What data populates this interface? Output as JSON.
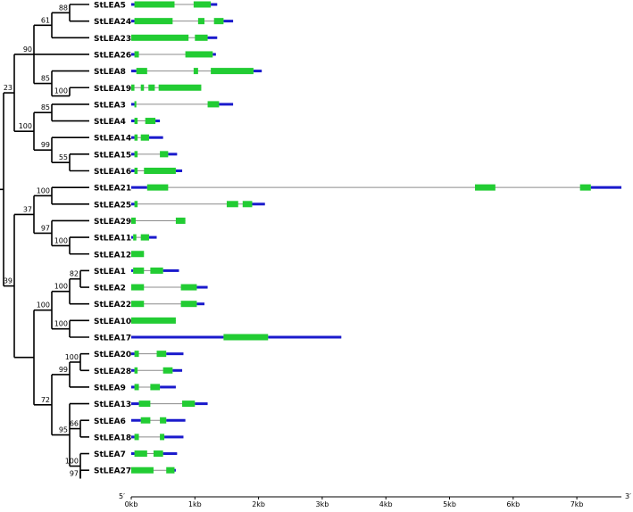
{
  "colors": {
    "cds": "#22cc33",
    "utr": "#1a1acc",
    "intron": "#8c8c8c",
    "tree": "#000000"
  },
  "scale": {
    "unit": "kb",
    "kb_per_tick": 1,
    "max_kb": 7.7,
    "ticks": [
      "0kb",
      "1kb",
      "2kb",
      "3kb",
      "4kb",
      "5kb",
      "6kb",
      "7kb"
    ],
    "end_left": "5′",
    "end_right": "3′"
  },
  "genes": [
    {
      "name": "StLEA5",
      "length": 1.35,
      "exons": [
        [
          0.05,
          0.68
        ],
        [
          0.98,
          1.25
        ]
      ],
      "utrs": [
        [
          0,
          0.05
        ],
        [
          1.25,
          1.35
        ]
      ]
    },
    {
      "name": "StLEA24",
      "length": 1.6,
      "exons": [
        [
          0.05,
          0.65
        ],
        [
          1.05,
          1.15
        ],
        [
          1.3,
          1.45
        ]
      ],
      "utrs": [
        [
          0,
          0.05
        ],
        [
          1.45,
          1.6
        ]
      ]
    },
    {
      "name": "StLEA23",
      "length": 1.35,
      "exons": [
        [
          0,
          0.9
        ],
        [
          1.0,
          1.2
        ]
      ],
      "utrs": [
        [
          1.2,
          1.35
        ]
      ]
    },
    {
      "name": "StLEA26",
      "length": 1.33,
      "exons": [
        [
          0.05,
          0.12
        ],
        [
          0.85,
          1.28
        ]
      ],
      "utrs": [
        [
          0,
          0.05
        ],
        [
          1.28,
          1.33
        ]
      ]
    },
    {
      "name": "StLEA8",
      "length": 2.05,
      "exons": [
        [
          0.08,
          0.25
        ],
        [
          0.98,
          1.05
        ],
        [
          1.25,
          1.92
        ]
      ],
      "utrs": [
        [
          0,
          0.08
        ],
        [
          1.92,
          2.05
        ]
      ]
    },
    {
      "name": "StLEA19",
      "length": 1.1,
      "exons": [
        [
          0,
          0.05
        ],
        [
          0.15,
          0.2
        ],
        [
          0.27,
          0.37
        ],
        [
          0.43,
          1.1
        ]
      ],
      "utrs": []
    },
    {
      "name": "StLEA3",
      "length": 1.6,
      "exons": [
        [
          0.05,
          0.08
        ],
        [
          1.2,
          1.38
        ]
      ],
      "utrs": [
        [
          0,
          0.05
        ],
        [
          1.38,
          1.6
        ]
      ]
    },
    {
      "name": "StLEA4",
      "length": 0.45,
      "exons": [
        [
          0.05,
          0.1
        ],
        [
          0.22,
          0.38
        ]
      ],
      "utrs": [
        [
          0,
          0.05
        ],
        [
          0.38,
          0.45
        ]
      ]
    },
    {
      "name": "StLEA14",
      "length": 0.5,
      "exons": [
        [
          0.05,
          0.1
        ],
        [
          0.15,
          0.28
        ]
      ],
      "utrs": [
        [
          0,
          0.05
        ],
        [
          0.28,
          0.5
        ]
      ]
    },
    {
      "name": "StLEA15",
      "length": 0.72,
      "exons": [
        [
          0.05,
          0.1
        ],
        [
          0.45,
          0.58
        ]
      ],
      "utrs": [
        [
          0,
          0.05
        ],
        [
          0.58,
          0.72
        ]
      ]
    },
    {
      "name": "StLEA16",
      "length": 0.8,
      "exons": [
        [
          0.05,
          0.1
        ],
        [
          0.2,
          0.7
        ]
      ],
      "utrs": [
        [
          0,
          0.05
        ],
        [
          0.7,
          0.8
        ]
      ]
    },
    {
      "name": "StLEA21",
      "length": 7.7,
      "exons": [
        [
          0.25,
          0.58
        ],
        [
          5.4,
          5.72
        ],
        [
          7.05,
          7.22
        ]
      ],
      "utrs": [
        [
          0,
          0.25
        ],
        [
          7.22,
          7.7
        ]
      ]
    },
    {
      "name": "StLEA25",
      "length": 2.1,
      "exons": [
        [
          0.05,
          0.1
        ],
        [
          1.5,
          1.68
        ],
        [
          1.75,
          1.9
        ]
      ],
      "utrs": [
        [
          0,
          0.05
        ],
        [
          1.9,
          2.1
        ]
      ]
    },
    {
      "name": "StLEA29",
      "length": 0.85,
      "exons": [
        [
          0,
          0.07
        ],
        [
          0.7,
          0.85
        ]
      ],
      "utrs": []
    },
    {
      "name": "StLEA11",
      "length": 0.4,
      "exons": [
        [
          0.03,
          0.08
        ],
        [
          0.15,
          0.28
        ]
      ],
      "utrs": [
        [
          0,
          0.03
        ],
        [
          0.28,
          0.4
        ]
      ]
    },
    {
      "name": "StLEA12",
      "length": 0.2,
      "exons": [
        [
          0,
          0.2
        ]
      ],
      "utrs": []
    },
    {
      "name": "StLEA1",
      "length": 0.75,
      "exons": [
        [
          0.03,
          0.2
        ],
        [
          0.3,
          0.5
        ]
      ],
      "utrs": [
        [
          0,
          0.03
        ],
        [
          0.5,
          0.75
        ]
      ]
    },
    {
      "name": "StLEA2",
      "length": 1.2,
      "exons": [
        [
          0,
          0.2
        ],
        [
          0.78,
          1.03
        ]
      ],
      "utrs": [
        [
          1.03,
          1.2
        ]
      ]
    },
    {
      "name": "StLEA22",
      "length": 1.15,
      "exons": [
        [
          0,
          0.2
        ],
        [
          0.78,
          1.03
        ]
      ],
      "utrs": [
        [
          1.03,
          1.15
        ]
      ]
    },
    {
      "name": "StLEA10",
      "length": 0.7,
      "exons": [
        [
          0,
          0.7
        ]
      ],
      "utrs": []
    },
    {
      "name": "StLEA17",
      "length": 3.3,
      "exons": [
        [
          1.45,
          2.15
        ]
      ],
      "utrs": [
        [
          0,
          1.45
        ],
        [
          2.15,
          3.3
        ]
      ]
    },
    {
      "name": "StLEA20",
      "length": 0.82,
      "exons": [
        [
          0.05,
          0.12
        ],
        [
          0.4,
          0.55
        ]
      ],
      "utrs": [
        [
          0,
          0.05
        ],
        [
          0.55,
          0.82
        ]
      ]
    },
    {
      "name": "StLEA28",
      "length": 0.8,
      "exons": [
        [
          0.05,
          0.1
        ],
        [
          0.5,
          0.65
        ]
      ],
      "utrs": [
        [
          0,
          0.05
        ],
        [
          0.65,
          0.8
        ]
      ]
    },
    {
      "name": "StLEA9",
      "length": 0.7,
      "exons": [
        [
          0.05,
          0.12
        ],
        [
          0.3,
          0.45
        ]
      ],
      "utrs": [
        [
          0,
          0.05
        ],
        [
          0.45,
          0.7
        ]
      ]
    },
    {
      "name": "StLEA13",
      "length": 1.2,
      "exons": [
        [
          0.12,
          0.3
        ],
        [
          0.8,
          1.0
        ]
      ],
      "utrs": [
        [
          0,
          0.12
        ],
        [
          1.0,
          1.2
        ]
      ]
    },
    {
      "name": "StLEA6",
      "length": 0.85,
      "exons": [
        [
          0.15,
          0.3
        ],
        [
          0.45,
          0.55
        ]
      ],
      "utrs": [
        [
          0,
          0.15
        ],
        [
          0.55,
          0.85
        ]
      ]
    },
    {
      "name": "StLEA18",
      "length": 0.82,
      "exons": [
        [
          0.05,
          0.12
        ],
        [
          0.45,
          0.52
        ]
      ],
      "utrs": [
        [
          0,
          0.05
        ],
        [
          0.52,
          0.82
        ]
      ]
    },
    {
      "name": "StLEA7",
      "length": 0.72,
      "exons": [
        [
          0.05,
          0.25
        ],
        [
          0.35,
          0.5
        ]
      ],
      "utrs": [
        [
          0,
          0.05
        ],
        [
          0.5,
          0.72
        ]
      ]
    },
    {
      "name": "StLEA27",
      "length": 0.7,
      "exons": [
        [
          0,
          0.35
        ],
        [
          0.55,
          0.68
        ]
      ],
      "utrs": [
        [
          0.68,
          0.7
        ]
      ]
    }
  ],
  "tree": {
    "children": [
      {
        "bootstrap": "23",
        "children": [
          {
            "bootstrap": "90",
            "children": [
              {
                "bootstrap": "61",
                "children": [
                  {
                    "bootstrap": "88",
                    "children": [
                      {
                        "leaf": "StLEA5"
                      },
                      {
                        "leaf": "StLEA24"
                      }
                    ]
                  },
                  {
                    "leaf": "StLEA23"
                  }
                ]
              },
              {
                "leaf": "StLEA26"
              },
              {
                "bootstrap": "85",
                "children": [
                  {
                    "leaf": "StLEA8"
                  },
                  {
                    "bootstrap": "100",
                    "children": [
                      {
                        "leaf": "StLEA19"
                      }
                    ]
                  }
                ]
              }
            ]
          },
          {
            "bootstrap": "100",
            "children": [
              {
                "bootstrap": "85",
                "children": [
                  {
                    "leaf": "StLEA3"
                  },
                  {
                    "leaf": "StLEA4"
                  }
                ]
              },
              {
                "bootstrap": "99",
                "children": [
                  {
                    "leaf": "StLEA14"
                  },
                  {
                    "bootstrap": "55",
                    "children": [
                      {
                        "leaf": "StLEA15"
                      },
                      {
                        "leaf": "StLEA16"
                      }
                    ]
                  }
                ]
              }
            ]
          }
        ]
      },
      {
        "bootstrap": "39",
        "children": [
          {
            "bootstrap": "37",
            "children": [
              {
                "bootstrap": "100",
                "children": [
                  {
                    "leaf": "StLEA21"
                  },
                  {
                    "leaf": "StLEA25"
                  }
                ]
              },
              {
                "bootstrap": "97",
                "children": [
                  {
                    "leaf": "StLEA29"
                  },
                  {
                    "bootstrap": "100",
                    "children": [
                      {
                        "leaf": "StLEA11"
                      },
                      {
                        "leaf": "StLEA12"
                      }
                    ]
                  }
                ]
              }
            ]
          },
          {
            "children": [
              {
                "bootstrap": "100",
                "children": [
                  {
                    "bootstrap": "100",
                    "children": [
                      {
                        "bootstrap": "82",
                        "children": [
                          {
                            "leaf": "StLEA1"
                          },
                          {
                            "leaf": "StLEA2"
                          }
                        ]
                      },
                      {
                        "leaf": "StLEA22"
                      }
                    ]
                  },
                  {
                    "bootstrap": "100",
                    "children": [
                      {
                        "leaf": "StLEA10"
                      },
                      {
                        "leaf": "StLEA17"
                      }
                    ]
                  }
                ]
              },
              {
                "bootstrap": "72",
                "children": [
                  {
                    "bootstrap": "99",
                    "children": [
                      {
                        "bootstrap": "100",
                        "children": [
                          {
                            "leaf": "StLEA20"
                          },
                          {
                            "leaf": "StLEA28"
                          }
                        ]
                      },
                      {
                        "leaf": "StLEA9"
                      }
                    ]
                  },
                  {
                    "bootstrap": "95",
                    "children": [
                      {
                        "leaf": "StLEA13"
                      },
                      {
                        "bootstrap": "66",
                        "children": [
                          {
                            "leaf": "StLEA6"
                          },
                          {
                            "leaf": "StLEA18"
                          }
                        ]
                      },
                      {
                        "bootstrap": "100",
                        "children": [
                          {
                            "leaf": "StLEA7"
                          },
                          {
                            "bootstrap": "97",
                            "children": [
                              {
                                "leaf": "StLEA27"
                              }
                            ]
                          }
                        ]
                      }
                    ]
                  }
                ]
              }
            ]
          }
        ]
      }
    ]
  }
}
